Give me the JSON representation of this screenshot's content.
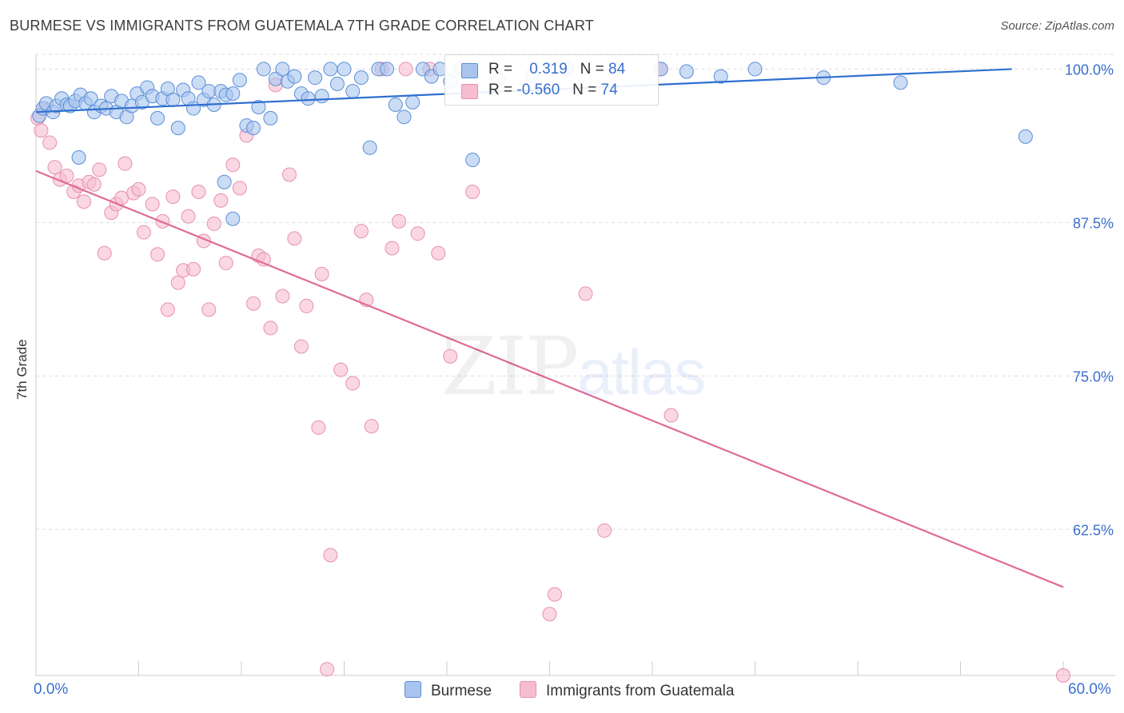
{
  "title": "BURMESE VS IMMIGRANTS FROM GUATEMALA 7TH GRADE CORRELATION CHART",
  "source": "Source: ZipAtlas.com",
  "watermark": {
    "zip": "ZIP",
    "atlas": "atlas"
  },
  "colors": {
    "burmese_fill": "#a9c4ee",
    "burmese_stroke": "#5b8fd6",
    "burmese_line": "#2f6fcf",
    "guatemala_fill": "#f6bdd0",
    "guatemala_stroke": "#e691ae",
    "guatemala_line": "#e06b98",
    "axis_label": "#3a6fd0",
    "grid": "#dddddd"
  },
  "legend": {
    "r_label": "R =",
    "n_label": "N =",
    "burmese": {
      "r": "0.319",
      "n": "84"
    },
    "guatemala": {
      "r": "-0.560",
      "n": "74"
    }
  },
  "bottom_legend": {
    "burmese": "Burmese",
    "guatemala": "Immigrants from Guatemala"
  },
  "chart_data": {
    "type": "scatter",
    "xlabel": "",
    "ylabel": "7th Grade",
    "xlim": [
      0,
      60
    ],
    "ylim": [
      50.6,
      101.2
    ],
    "x_tick_labels": [
      "0.0%",
      "60.0%"
    ],
    "y_ticks": [
      62.5,
      75.0,
      87.5,
      100.0
    ],
    "y_tick_labels": [
      "62.5%",
      "75.0%",
      "87.5%",
      "100.0%"
    ],
    "grid": "horizontal dashed",
    "legend_placement": "top-center",
    "series": [
      {
        "name": "Burmese",
        "r": 0.319,
        "n": 84,
        "trend": [
          [
            0,
            96.5
          ],
          [
            57,
            100.0
          ]
        ],
        "points": [
          [
            0.2,
            96.2
          ],
          [
            0.4,
            96.8
          ],
          [
            0.6,
            97.2
          ],
          [
            1.0,
            96.5
          ],
          [
            1.2,
            97.0
          ],
          [
            1.5,
            97.6
          ],
          [
            1.8,
            97.1
          ],
          [
            2.0,
            97.0
          ],
          [
            2.3,
            97.4
          ],
          [
            2.6,
            97.9
          ],
          [
            2.9,
            97.2
          ],
          [
            3.2,
            97.6
          ],
          [
            3.4,
            96.5
          ],
          [
            3.8,
            97.0
          ],
          [
            4.1,
            96.8
          ],
          [
            4.4,
            97.8
          ],
          [
            4.7,
            96.5
          ],
          [
            5.0,
            97.4
          ],
          [
            5.3,
            96.1
          ],
          [
            5.6,
            97.0
          ],
          [
            5.9,
            98.0
          ],
          [
            6.2,
            97.3
          ],
          [
            6.5,
            98.5
          ],
          [
            6.8,
            97.8
          ],
          [
            7.1,
            96.0
          ],
          [
            7.4,
            97.6
          ],
          [
            7.7,
            98.4
          ],
          [
            8.0,
            97.5
          ],
          [
            8.3,
            95.2
          ],
          [
            8.6,
            98.3
          ],
          [
            8.9,
            97.6
          ],
          [
            9.2,
            96.8
          ],
          [
            9.5,
            98.9
          ],
          [
            9.8,
            97.5
          ],
          [
            10.1,
            98.2
          ],
          [
            10.4,
            97.1
          ],
          [
            10.8,
            98.2
          ],
          [
            11.1,
            97.9
          ],
          [
            11.5,
            98.0
          ],
          [
            11.9,
            99.1
          ],
          [
            12.3,
            95.4
          ],
          [
            12.7,
            95.2
          ],
          [
            13.0,
            96.9
          ],
          [
            13.3,
            100.0
          ],
          [
            13.7,
            96.0
          ],
          [
            14.0,
            99.2
          ],
          [
            14.4,
            100.0
          ],
          [
            14.7,
            99.0
          ],
          [
            15.1,
            99.4
          ],
          [
            15.5,
            98.0
          ],
          [
            15.9,
            97.6
          ],
          [
            16.3,
            99.3
          ],
          [
            16.7,
            97.8
          ],
          [
            17.2,
            100.0
          ],
          [
            17.6,
            98.8
          ],
          [
            18.0,
            100.0
          ],
          [
            18.5,
            98.2
          ],
          [
            19.0,
            99.3
          ],
          [
            19.5,
            93.6
          ],
          [
            20.0,
            100.0
          ],
          [
            20.5,
            100.0
          ],
          [
            21.0,
            97.1
          ],
          [
            21.5,
            96.1
          ],
          [
            22.0,
            97.3
          ],
          [
            22.6,
            100.0
          ],
          [
            23.1,
            99.4
          ],
          [
            23.6,
            100.0
          ],
          [
            24.2,
            99.0
          ],
          [
            24.8,
            100.0
          ],
          [
            25.3,
            100.0
          ],
          [
            27.0,
            99.2
          ],
          [
            29.0,
            99.5
          ],
          [
            31.0,
            100.0
          ],
          [
            36.5,
            100.0
          ],
          [
            38.0,
            99.8
          ],
          [
            40.0,
            99.4
          ],
          [
            42.0,
            100.0
          ],
          [
            46.0,
            99.3
          ],
          [
            50.5,
            98.9
          ],
          [
            57.8,
            94.5
          ],
          [
            2.5,
            92.8
          ],
          [
            11.0,
            90.8
          ],
          [
            11.5,
            87.8
          ],
          [
            25.5,
            92.6
          ]
        ]
      },
      {
        "name": "Immigrants from Guatemala",
        "r": -0.56,
        "n": 74,
        "trend": [
          [
            0,
            91.7
          ],
          [
            60,
            57.8
          ]
        ],
        "points": [
          [
            0.1,
            96.0
          ],
          [
            0.3,
            95.0
          ],
          [
            0.5,
            96.8
          ],
          [
            0.8,
            94.0
          ],
          [
            1.1,
            92.0
          ],
          [
            1.4,
            91.0
          ],
          [
            1.8,
            91.3
          ],
          [
            2.2,
            90.0
          ],
          [
            2.5,
            90.5
          ],
          [
            2.8,
            89.2
          ],
          [
            3.1,
            90.8
          ],
          [
            3.4,
            90.6
          ],
          [
            3.7,
            91.8
          ],
          [
            4.0,
            85.0
          ],
          [
            4.4,
            88.3
          ],
          [
            4.7,
            89.0
          ],
          [
            5.0,
            89.5
          ],
          [
            5.2,
            92.3
          ],
          [
            5.7,
            89.9
          ],
          [
            6.0,
            90.2
          ],
          [
            6.3,
            86.7
          ],
          [
            6.8,
            89.0
          ],
          [
            7.1,
            84.9
          ],
          [
            7.4,
            87.6
          ],
          [
            7.7,
            80.4
          ],
          [
            8.0,
            89.6
          ],
          [
            8.3,
            82.6
          ],
          [
            8.6,
            83.6
          ],
          [
            8.9,
            88.0
          ],
          [
            9.2,
            83.7
          ],
          [
            9.5,
            90.0
          ],
          [
            9.8,
            86.0
          ],
          [
            10.1,
            80.4
          ],
          [
            10.4,
            87.4
          ],
          [
            10.8,
            89.3
          ],
          [
            11.1,
            84.2
          ],
          [
            11.5,
            92.2
          ],
          [
            11.9,
            90.3
          ],
          [
            12.3,
            94.6
          ],
          [
            12.7,
            80.9
          ],
          [
            13.0,
            84.8
          ],
          [
            13.3,
            84.5
          ],
          [
            13.7,
            78.9
          ],
          [
            14.0,
            98.7
          ],
          [
            14.4,
            81.5
          ],
          [
            14.8,
            91.4
          ],
          [
            15.1,
            86.2
          ],
          [
            15.5,
            77.4
          ],
          [
            15.8,
            80.7
          ],
          [
            16.5,
            70.8
          ],
          [
            16.7,
            83.3
          ],
          [
            17.0,
            51.1
          ],
          [
            17.2,
            60.4
          ],
          [
            17.8,
            75.5
          ],
          [
            18.5,
            74.4
          ],
          [
            19.0,
            86.8
          ],
          [
            19.3,
            81.2
          ],
          [
            19.6,
            70.9
          ],
          [
            20.2,
            100.0
          ],
          [
            20.8,
            85.4
          ],
          [
            21.2,
            87.6
          ],
          [
            21.6,
            100.0
          ],
          [
            22.3,
            86.6
          ],
          [
            23.0,
            100.0
          ],
          [
            23.5,
            85.0
          ],
          [
            24.2,
            76.6
          ],
          [
            25.5,
            90.0
          ],
          [
            30.0,
            55.6
          ],
          [
            30.3,
            57.2
          ],
          [
            32.1,
            81.7
          ],
          [
            33.2,
            62.4
          ],
          [
            36.5,
            100.0
          ],
          [
            37.1,
            71.8
          ],
          [
            60.0,
            50.6
          ]
        ]
      }
    ]
  }
}
